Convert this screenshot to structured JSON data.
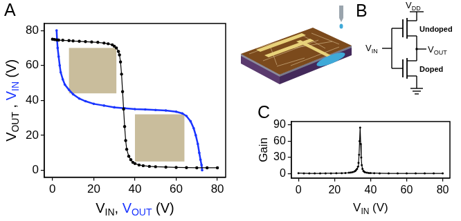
{
  "chart_data": [
    {
      "type": "line",
      "title": "A",
      "xlabel": [
        {
          "text": "V",
          "sub": "IN"
        },
        {
          "text": ", "
        },
        {
          "text": "V",
          "sub": "OUT",
          "color": "#1a35ff"
        },
        {
          "text": " (V)"
        }
      ],
      "ylabel": [
        {
          "text": "V",
          "sub": "OUT"
        },
        {
          "text": " , "
        },
        {
          "text": "V",
          "sub": "IN",
          "color": "#1a35ff"
        },
        {
          "text": " (V)"
        }
      ],
      "xlim": [
        -4,
        84
      ],
      "ylim": [
        -4,
        84
      ],
      "xticks": [
        0,
        20,
        40,
        60,
        80
      ],
      "yticks": [
        0,
        20,
        40,
        60,
        80
      ],
      "grid": false,
      "boxes": {
        "color": "#c9bd9c",
        "x": [
          [
            8,
            31
          ],
          [
            40,
            64
          ]
        ],
        "y": [
          [
            44,
            70
          ],
          [
            5,
            32
          ]
        ]
      },
      "series": [
        {
          "color": "#000000",
          "marker": "circle",
          "x": [
            0,
            1,
            2,
            3,
            5,
            8,
            10,
            13,
            16,
            19,
            22,
            25,
            27,
            29,
            30,
            31,
            32,
            32.5,
            33,
            33.5,
            34,
            34.5,
            35,
            35.5,
            36,
            37,
            38,
            39,
            40,
            42,
            44,
            47,
            50,
            55,
            60,
            65,
            70,
            75,
            80
          ],
          "values": [
            75,
            74.8,
            74.6,
            74.5,
            74.4,
            74.2,
            74,
            73.8,
            73.6,
            73.4,
            73.2,
            72.8,
            72.4,
            71.8,
            71,
            70,
            68,
            66,
            62,
            55,
            45,
            35,
            25,
            17,
            12,
            8,
            6,
            4.5,
            3.8,
            3,
            2.6,
            2.2,
            2,
            1.8,
            1.6,
            1.5,
            1.4,
            1.4,
            1.4
          ]
        },
        {
          "color": "#1a35ff",
          "marker": "circle",
          "x": [
            2,
            2.2,
            2.5,
            3,
            3.5,
            4,
            5,
            6,
            8,
            10,
            13,
            16,
            20,
            25,
            30,
            35,
            40,
            45,
            50,
            55,
            60,
            63,
            65,
            67,
            68.5,
            69.5,
            70.5,
            71.2,
            71.8,
            72.3,
            72.6
          ],
          "values": [
            80,
            75,
            70,
            65,
            60,
            56,
            52,
            49,
            46,
            43.5,
            41,
            39.5,
            38,
            37,
            36,
            35.5,
            35,
            34.8,
            34.5,
            34.2,
            33.5,
            32.5,
            31,
            28,
            24,
            20,
            15,
            10,
            6,
            3,
            0
          ]
        }
      ]
    },
    {
      "type": "line",
      "title": "C",
      "xlabel": [
        {
          "text": "V",
          "sub": "IN"
        },
        {
          "text": " (V)"
        }
      ],
      "ylabel": [
        {
          "text": "Gain"
        }
      ],
      "xlim": [
        -4,
        84
      ],
      "ylim": [
        -8,
        96
      ],
      "xticks": [
        0,
        20,
        40,
        60,
        80
      ],
      "yticks": [
        0,
        30,
        60,
        90
      ],
      "grid": false,
      "series": [
        {
          "color": "#000000",
          "marker": "circle",
          "x": [
            0,
            3,
            6,
            9,
            12,
            15,
            18,
            21,
            24,
            26,
            28,
            29,
            30,
            31,
            31.5,
            32,
            32.5,
            33,
            33.3,
            33.6,
            33.9,
            34.2,
            34.5,
            34.8,
            35.1,
            35.5,
            36,
            36.5,
            37,
            38,
            39,
            40,
            42,
            45,
            50,
            55,
            60,
            65,
            70,
            75,
            80
          ],
          "values": [
            1,
            0.8,
            0.6,
            0.6,
            0.6,
            0.7,
            0.8,
            0.9,
            1.1,
            1.3,
            1.8,
            2.3,
            3,
            4,
            5,
            7,
            9,
            13,
            20,
            35,
            60,
            85,
            55,
            30,
            16,
            9,
            5,
            3.5,
            2.5,
            1.8,
            1.4,
            1.2,
            1,
            0.8,
            0.6,
            0.5,
            0.5,
            0.5,
            0.5,
            0.5,
            0.5
          ]
        }
      ]
    }
  ],
  "diagram": {
    "title": "B",
    "supply": [
      {
        "text": "V",
        "sub": "DD"
      }
    ],
    "input": [
      {
        "text": "V",
        "sub": "IN"
      }
    ],
    "output": [
      {
        "text": "V",
        "sub": "OUT"
      }
    ],
    "upper_transistor": "Undoped",
    "lower_transistor": "Doped"
  }
}
